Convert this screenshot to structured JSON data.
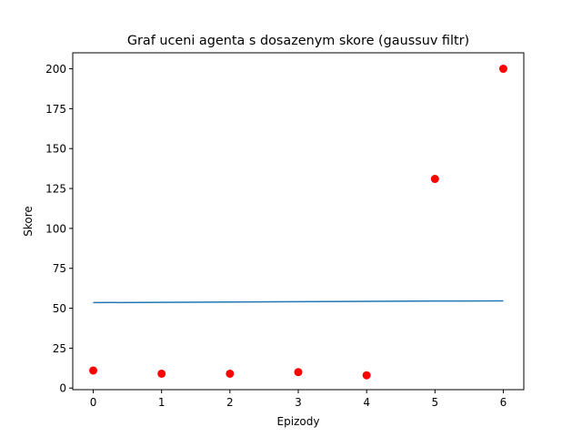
{
  "chart_data": {
    "type": "line",
    "title": "Graf uceni agenta s dosazenym skore (gaussuv filtr)",
    "xlabel": "Epizody",
    "ylabel": "Skore",
    "xlim": [
      -0.3,
      6.3
    ],
    "ylim": [
      -1,
      210
    ],
    "xticks": [
      0,
      1,
      2,
      3,
      4,
      5,
      6
    ],
    "yticks": [
      0,
      25,
      50,
      75,
      100,
      125,
      150,
      175,
      200
    ],
    "grid": false,
    "series": [
      {
        "kind": "line",
        "color": "#1f77b4",
        "x": [
          0,
          1,
          2,
          3,
          4,
          5,
          6
        ],
        "y": [
          53.5,
          53.7,
          53.9,
          54.1,
          54.3,
          54.5,
          54.6
        ]
      },
      {
        "kind": "scatter",
        "color": "#ff0000",
        "x": [
          0,
          1,
          2,
          3,
          4,
          5,
          6
        ],
        "y": [
          11,
          9,
          9,
          10,
          8,
          131,
          200
        ]
      }
    ]
  }
}
